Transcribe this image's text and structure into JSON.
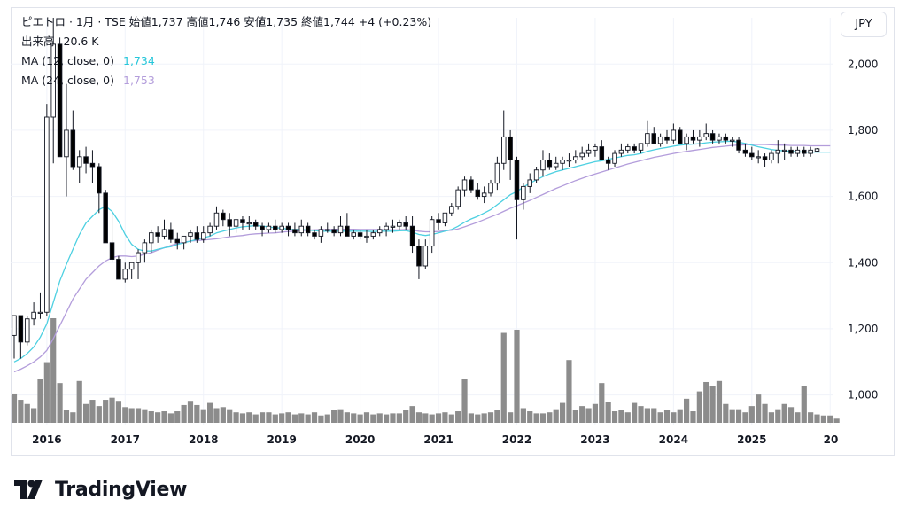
{
  "header": {
    "title_line": "ピエトロ · 1月 · TSE 始値1,737 高値1,746 安値1,735 終値1,744 +4 (+0.23%)",
    "volume_label": "出来高",
    "volume_value": "20.6 K",
    "ma12_label": "MA (12, close, 0)",
    "ma12_value": "1,734",
    "ma24_label": "MA (24, close, 0)",
    "ma24_value": "1,753"
  },
  "currency_button": "JPY",
  "brand": "TradingView",
  "colors": {
    "up": "#ffffff",
    "down": "#000000",
    "wick": "#131722",
    "volume": "#8c8c8c",
    "ma12": "#4dd0e1",
    "ma24": "#b39ddb",
    "grid": "#f0f3fa"
  },
  "chart_data": {
    "type": "candlestick",
    "interval": "monthly",
    "symbol": "ピエトロ",
    "exchange": "TSE",
    "currency": "JPY",
    "ylim": [
      940,
      2140
    ],
    "y_ticks": [
      "2,000",
      "1,800",
      "1,600",
      "1,400",
      "1,200",
      "1,000"
    ],
    "x_ticks": [
      "2016",
      "2017",
      "2018",
      "2019",
      "2020",
      "2021",
      "2022",
      "2023",
      "2024",
      "2025",
      "20"
    ],
    "grid": true,
    "start": "2015-08",
    "candles_ohlc": [
      [
        1180,
        1240,
        1110,
        1240
      ],
      [
        1240,
        1170,
        1110,
        1160
      ],
      [
        1160,
        1240,
        1150,
        1230
      ],
      [
        1230,
        1280,
        1210,
        1250
      ],
      [
        1250,
        1310,
        1230,
        1250
      ],
      [
        1250,
        1880,
        1240,
        1840
      ],
      [
        1840,
        2140,
        1700,
        2060
      ],
      [
        2060,
        2080,
        1730,
        1720
      ],
      [
        1720,
        1940,
        1600,
        1800
      ],
      [
        1800,
        1860,
        1680,
        1690
      ],
      [
        1690,
        1740,
        1640,
        1720
      ],
      [
        1720,
        1750,
        1670,
        1700
      ],
      [
        1700,
        1740,
        1640,
        1690
      ],
      [
        1690,
        1700,
        1550,
        1610
      ],
      [
        1610,
        1620,
        1480,
        1460
      ],
      [
        1460,
        1550,
        1400,
        1410
      ],
      [
        1410,
        1420,
        1380,
        1350
      ],
      [
        1350,
        1400,
        1340,
        1380
      ],
      [
        1380,
        1400,
        1350,
        1400
      ],
      [
        1400,
        1440,
        1350,
        1430
      ],
      [
        1430,
        1470,
        1400,
        1460
      ],
      [
        1460,
        1500,
        1430,
        1490
      ],
      [
        1490,
        1510,
        1460,
        1480
      ],
      [
        1480,
        1530,
        1470,
        1500
      ],
      [
        1500,
        1520,
        1460,
        1470
      ],
      [
        1470,
        1490,
        1440,
        1460
      ],
      [
        1460,
        1480,
        1440,
        1480
      ],
      [
        1480,
        1500,
        1460,
        1490
      ],
      [
        1490,
        1510,
        1460,
        1470
      ],
      [
        1470,
        1510,
        1460,
        1490
      ],
      [
        1490,
        1520,
        1480,
        1510
      ],
      [
        1510,
        1570,
        1500,
        1550
      ],
      [
        1550,
        1560,
        1510,
        1530
      ],
      [
        1530,
        1550,
        1480,
        1510
      ],
      [
        1510,
        1530,
        1490,
        1530
      ],
      [
        1530,
        1540,
        1500,
        1520
      ],
      [
        1520,
        1540,
        1500,
        1520
      ],
      [
        1520,
        1530,
        1500,
        1510
      ],
      [
        1510,
        1520,
        1480,
        1500
      ],
      [
        1500,
        1520,
        1490,
        1510
      ],
      [
        1510,
        1530,
        1490,
        1500
      ],
      [
        1500,
        1520,
        1490,
        1510
      ],
      [
        1510,
        1520,
        1480,
        1500
      ],
      [
        1500,
        1520,
        1480,
        1490
      ],
      [
        1490,
        1530,
        1480,
        1510
      ],
      [
        1510,
        1520,
        1480,
        1490
      ],
      [
        1490,
        1500,
        1470,
        1480
      ],
      [
        1480,
        1510,
        1460,
        1500
      ],
      [
        1500,
        1520,
        1490,
        1500
      ],
      [
        1500,
        1510,
        1480,
        1490
      ],
      [
        1490,
        1540,
        1480,
        1510
      ],
      [
        1510,
        1550,
        1480,
        1480
      ],
      [
        1480,
        1500,
        1470,
        1490
      ],
      [
        1490,
        1500,
        1470,
        1480
      ],
      [
        1480,
        1500,
        1460,
        1480
      ],
      [
        1480,
        1500,
        1470,
        1490
      ],
      [
        1490,
        1510,
        1480,
        1500
      ],
      [
        1500,
        1520,
        1480,
        1510
      ],
      [
        1510,
        1530,
        1490,
        1510
      ],
      [
        1510,
        1530,
        1500,
        1520
      ],
      [
        1520,
        1540,
        1500,
        1510
      ],
      [
        1510,
        1540,
        1430,
        1450
      ],
      [
        1450,
        1470,
        1350,
        1390
      ],
      [
        1390,
        1470,
        1380,
        1450
      ],
      [
        1450,
        1540,
        1430,
        1530
      ],
      [
        1530,
        1550,
        1500,
        1520
      ],
      [
        1520,
        1550,
        1510,
        1550
      ],
      [
        1550,
        1580,
        1540,
        1570
      ],
      [
        1570,
        1630,
        1560,
        1620
      ],
      [
        1620,
        1660,
        1600,
        1650
      ],
      [
        1650,
        1660,
        1610,
        1620
      ],
      [
        1620,
        1640,
        1590,
        1600
      ],
      [
        1600,
        1630,
        1580,
        1610
      ],
      [
        1610,
        1650,
        1600,
        1640
      ],
      [
        1640,
        1720,
        1620,
        1700
      ],
      [
        1700,
        1860,
        1680,
        1780
      ],
      [
        1780,
        1800,
        1650,
        1710
      ],
      [
        1710,
        1720,
        1470,
        1590
      ],
      [
        1590,
        1640,
        1560,
        1630
      ],
      [
        1630,
        1670,
        1610,
        1650
      ],
      [
        1650,
        1690,
        1640,
        1680
      ],
      [
        1680,
        1740,
        1660,
        1710
      ],
      [
        1710,
        1730,
        1680,
        1690
      ],
      [
        1690,
        1720,
        1680,
        1700
      ],
      [
        1700,
        1720,
        1680,
        1710
      ],
      [
        1710,
        1730,
        1690,
        1710
      ],
      [
        1710,
        1740,
        1700,
        1720
      ],
      [
        1720,
        1750,
        1710,
        1730
      ],
      [
        1730,
        1760,
        1720,
        1740
      ],
      [
        1740,
        1760,
        1720,
        1750
      ],
      [
        1750,
        1770,
        1710,
        1710
      ],
      [
        1710,
        1720,
        1680,
        1700
      ],
      [
        1700,
        1740,
        1690,
        1730
      ],
      [
        1730,
        1760,
        1720,
        1740
      ],
      [
        1740,
        1760,
        1730,
        1750
      ],
      [
        1750,
        1760,
        1730,
        1740
      ],
      [
        1740,
        1760,
        1730,
        1760
      ],
      [
        1760,
        1830,
        1750,
        1790
      ],
      [
        1790,
        1810,
        1760,
        1760
      ],
      [
        1760,
        1790,
        1750,
        1780
      ],
      [
        1780,
        1800,
        1760,
        1770
      ],
      [
        1770,
        1820,
        1760,
        1800
      ],
      [
        1800,
        1810,
        1760,
        1760
      ],
      [
        1760,
        1790,
        1740,
        1780
      ],
      [
        1780,
        1800,
        1760,
        1770
      ],
      [
        1770,
        1800,
        1750,
        1780
      ],
      [
        1780,
        1820,
        1770,
        1790
      ],
      [
        1790,
        1800,
        1760,
        1770
      ],
      [
        1770,
        1790,
        1760,
        1780
      ],
      [
        1780,
        1790,
        1760,
        1770
      ],
      [
        1770,
        1780,
        1750,
        1770
      ],
      [
        1770,
        1780,
        1730,
        1740
      ],
      [
        1740,
        1760,
        1720,
        1730
      ],
      [
        1730,
        1750,
        1710,
        1720
      ],
      [
        1720,
        1740,
        1700,
        1720
      ],
      [
        1720,
        1730,
        1690,
        1710
      ],
      [
        1710,
        1740,
        1700,
        1730
      ],
      [
        1730,
        1770,
        1700,
        1740
      ],
      [
        1740,
        1760,
        1710,
        1740
      ],
      [
        1740,
        1750,
        1720,
        1730
      ],
      [
        1730,
        1750,
        1720,
        1740
      ],
      [
        1740,
        1750,
        1720,
        1730
      ],
      [
        1730,
        1750,
        1720,
        1740
      ],
      [
        1737,
        1746,
        1735,
        1744
      ]
    ],
    "volume_relative": [
      0.28,
      0.22,
      0.18,
      0.14,
      0.42,
      0.58,
      1.0,
      0.38,
      0.12,
      0.1,
      0.4,
      0.18,
      0.22,
      0.16,
      0.22,
      0.24,
      0.21,
      0.15,
      0.14,
      0.14,
      0.13,
      0.11,
      0.1,
      0.11,
      0.09,
      0.11,
      0.17,
      0.21,
      0.17,
      0.13,
      0.19,
      0.14,
      0.15,
      0.13,
      0.1,
      0.09,
      0.1,
      0.08,
      0.1,
      0.1,
      0.08,
      0.09,
      0.1,
      0.08,
      0.09,
      0.08,
      0.1,
      0.07,
      0.08,
      0.12,
      0.13,
      0.1,
      0.09,
      0.08,
      0.1,
      0.08,
      0.09,
      0.08,
      0.09,
      0.09,
      0.12,
      0.16,
      0.1,
      0.09,
      0.08,
      0.09,
      0.1,
      0.08,
      0.11,
      0.42,
      0.09,
      0.08,
      0.09,
      0.1,
      0.12,
      0.86,
      0.1,
      0.89,
      0.14,
      0.11,
      0.09,
      0.09,
      0.1,
      0.13,
      0.19,
      0.6,
      0.12,
      0.16,
      0.14,
      0.18,
      0.38,
      0.2,
      0.11,
      0.12,
      0.1,
      0.19,
      0.16,
      0.14,
      0.14,
      0.1,
      0.12,
      0.1,
      0.13,
      0.23,
      0.11,
      0.3,
      0.39,
      0.35,
      0.4,
      0.18,
      0.13,
      0.13,
      0.1,
      0.16,
      0.27,
      0.18,
      0.1,
      0.13,
      0.18,
      0.15,
      0.1,
      0.35,
      0.1,
      0.08,
      0.07,
      0.07,
      0.04
    ],
    "ma12": [
      1100,
      1110,
      1125,
      1145,
      1175,
      1215,
      1280,
      1345,
      1395,
      1440,
      1485,
      1520,
      1540,
      1560,
      1570,
      1555,
      1525,
      1485,
      1455,
      1440,
      1435,
      1435,
      1440,
      1445,
      1448,
      1455,
      1460,
      1465,
      1470,
      1475,
      1480,
      1490,
      1495,
      1500,
      1505,
      1508,
      1510,
      1512,
      1510,
      1508,
      1505,
      1505,
      1500,
      1500,
      1500,
      1498,
      1497,
      1495,
      1495,
      1495,
      1495,
      1495,
      1495,
      1495,
      1495,
      1494,
      1495,
      1495,
      1495,
      1496,
      1497,
      1492,
      1485,
      1482,
      1485,
      1490,
      1495,
      1500,
      1510,
      1522,
      1532,
      1540,
      1550,
      1560,
      1575,
      1590,
      1605,
      1615,
      1628,
      1640,
      1650,
      1660,
      1668,
      1675,
      1680,
      1685,
      1690,
      1695,
      1700,
      1705,
      1708,
      1712,
      1716,
      1720,
      1724,
      1726,
      1730,
      1736,
      1741,
      1745,
      1748,
      1752,
      1755,
      1757,
      1758,
      1759,
      1762,
      1764,
      1765,
      1766,
      1767,
      1764,
      1760,
      1755,
      1750,
      1746,
      1742,
      1739,
      1738,
      1736,
      1735,
      1734,
      1734,
      1734,
      1734,
      1734
    ],
    "ma24": [
      1070,
      1078,
      1088,
      1100,
      1115,
      1135,
      1170,
      1210,
      1250,
      1290,
      1320,
      1350,
      1370,
      1390,
      1405,
      1415,
      1420,
      1420,
      1418,
      1420,
      1425,
      1430,
      1438,
      1445,
      1452,
      1458,
      1462,
      1465,
      1467,
      1468,
      1470,
      1472,
      1475,
      1478,
      1480,
      1482,
      1485,
      1487,
      1488,
      1489,
      1490,
      1492,
      1494,
      1495,
      1497,
      1498,
      1499,
      1500,
      1500,
      1501,
      1501,
      1501,
      1501,
      1500,
      1500,
      1500,
      1500,
      1499,
      1499,
      1499,
      1500,
      1498,
      1495,
      1493,
      1493,
      1494,
      1496,
      1498,
      1502,
      1508,
      1515,
      1522,
      1530,
      1538,
      1546,
      1555,
      1564,
      1572,
      1580,
      1588,
      1597,
      1606,
      1615,
      1624,
      1632,
      1640,
      1648,
      1655,
      1662,
      1668,
      1674,
      1680,
      1686,
      1692,
      1698,
      1703,
      1708,
      1713,
      1718,
      1722,
      1726,
      1730,
      1733,
      1736,
      1739,
      1742,
      1745,
      1748,
      1750,
      1752,
      1754,
      1755,
      1756,
      1757,
      1757,
      1757,
      1756,
      1755,
      1755,
      1754,
      1754,
      1754,
      1753,
      1753,
      1753,
      1753
    ]
  }
}
